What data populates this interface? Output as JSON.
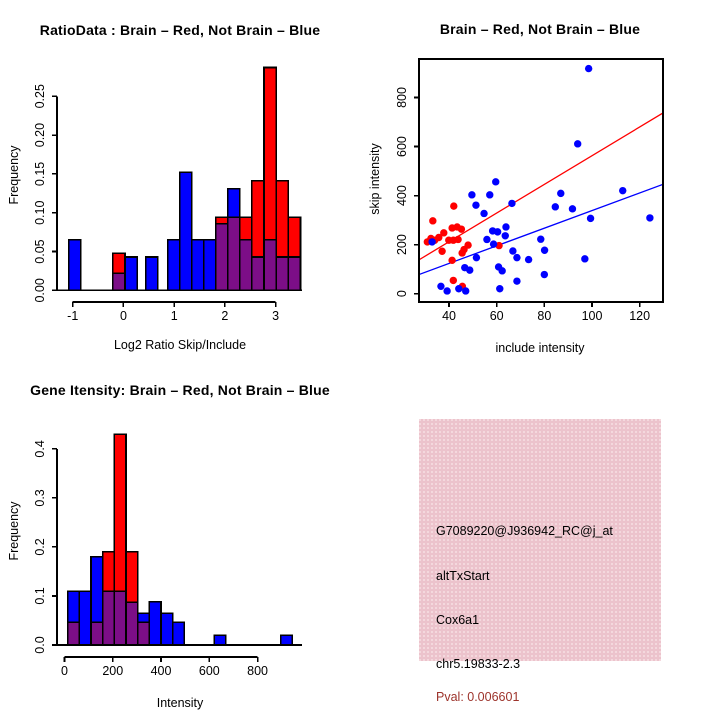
{
  "colors": {
    "red": "#ff0000",
    "blue": "#0000ff",
    "purple": "#7c0e87",
    "pink_box": "#ecc3cc",
    "pval_text": "#9d332b",
    "axis": "#000000",
    "background": "#ffffff"
  },
  "chart_data": [
    {
      "type": "bar",
      "subtype": "overlaid-histogram",
      "title": "RatioData : Brain – Red, Not Brain – Blue",
      "xlabel": "Log2 Ratio Skip/Include",
      "ylabel": "Frequency",
      "legend": {
        "Brain": "red",
        "Not Brain": "blue",
        "overlap": "purple"
      },
      "xlim": [
        -1.31,
        3.52
      ],
      "ylim": [
        -0.015,
        0.298
      ],
      "xticks": {
        "values": [
          -1,
          0,
          1,
          2,
          3
        ],
        "labels": [
          "-1",
          "0",
          "1",
          "2",
          "3"
        ]
      },
      "yticks": {
        "values": [
          0,
          0.05,
          0.1,
          0.15,
          0.2,
          0.25
        ],
        "labels": [
          "0.00",
          "0.05",
          "0.10",
          "0.15",
          "0.20",
          "0.25"
        ]
      },
      "bars": [
        {
          "x0": -1.08,
          "x1": -0.84,
          "h": 0.065,
          "color": "blue",
          "overlap": 0
        },
        {
          "x0": -0.21,
          "x1": 0.03,
          "h": 0.048,
          "color": "red",
          "overlap": 0.022
        },
        {
          "x0": 0.03,
          "x1": 0.27,
          "h": 0.043,
          "color": "blue",
          "overlap": 0
        },
        {
          "x0": 0.44,
          "x1": 0.68,
          "h": 0.043,
          "color": "blue",
          "overlap": 0
        },
        {
          "x0": 0.87,
          "x1": 1.11,
          "h": 0.065,
          "color": "blue",
          "overlap": 0
        },
        {
          "x0": 1.11,
          "x1": 1.35,
          "h": 0.152,
          "color": "blue",
          "overlap": 0
        },
        {
          "x0": 1.35,
          "x1": 1.58,
          "h": 0.065,
          "color": "blue",
          "overlap": 0
        },
        {
          "x0": 1.58,
          "x1": 1.82,
          "h": 0.065,
          "color": "blue",
          "overlap": 0
        },
        {
          "x0": 1.82,
          "x1": 2.06,
          "h": 0.094,
          "color": "red",
          "overlap": 0.086
        },
        {
          "x0": 2.06,
          "x1": 2.29,
          "h": 0.131,
          "color": "blue",
          "overlap": 0.094
        },
        {
          "x0": 2.29,
          "x1": 2.53,
          "h": 0.094,
          "color": "red",
          "overlap": 0.065
        },
        {
          "x0": 2.53,
          "x1": 2.77,
          "h": 0.141,
          "color": "red",
          "overlap": 0.043
        },
        {
          "x0": 2.77,
          "x1": 3.01,
          "h": 0.287,
          "color": "red",
          "overlap": 0.065
        },
        {
          "x0": 3.01,
          "x1": 3.25,
          "h": 0.141,
          "color": "red",
          "overlap": 0.043
        },
        {
          "x0": 3.25,
          "x1": 3.49,
          "h": 0.094,
          "color": "red",
          "overlap": 0.043
        }
      ]
    },
    {
      "type": "scatter",
      "title": "Brain – Red, Not Brain – Blue",
      "xlabel": "include intensity",
      "ylabel": "skip intensity",
      "xlim": [
        27.4,
        129.8
      ],
      "ylim": [
        -34,
        957
      ],
      "xticks": {
        "values": [
          40,
          60,
          80,
          100,
          120
        ],
        "labels": [
          "40",
          "60",
          "80",
          "100",
          "120"
        ]
      },
      "yticks": {
        "values": [
          0,
          200,
          400,
          600,
          800
        ],
        "labels": [
          "0",
          "200",
          "400",
          "600",
          "800"
        ]
      },
      "series": [
        {
          "name": "Brain",
          "color": "red",
          "points": [
            [
              42,
              357
            ],
            [
              33.2,
              297
            ],
            [
              30.9,
              211
            ],
            [
              32.4,
              225
            ],
            [
              34,
              218
            ],
            [
              35.7,
              229
            ],
            [
              37.8,
              248
            ],
            [
              39.9,
              218
            ],
            [
              41.3,
              268
            ],
            [
              43.4,
              272
            ],
            [
              45.2,
              263
            ],
            [
              41.8,
              218
            ],
            [
              43.8,
              221
            ],
            [
              37.1,
              173
            ],
            [
              41.3,
              136
            ],
            [
              45.5,
              166
            ],
            [
              46.3,
              180
            ],
            [
              48,
              198
            ],
            [
              41.8,
              54
            ],
            [
              45.6,
              30
            ],
            [
              61,
              196
            ]
          ]
        },
        {
          "name": "Not Brain",
          "color": "blue",
          "points": [
            [
              59.6,
              456
            ],
            [
              49.6,
              403
            ],
            [
              57.1,
              403
            ],
            [
              51.3,
              361
            ],
            [
              54.7,
              327
            ],
            [
              66.4,
              368
            ],
            [
              58.3,
              256
            ],
            [
              60.4,
              252
            ],
            [
              63.9,
              272
            ],
            [
              55.9,
              221
            ],
            [
              58.7,
              202
            ],
            [
              63.6,
              236
            ],
            [
              66.8,
              174
            ],
            [
              68.5,
              147
            ],
            [
              73.4,
              139
            ],
            [
              32.9,
              211
            ],
            [
              46.6,
              106
            ],
            [
              48.7,
              96
            ],
            [
              51.5,
              147
            ],
            [
              60.8,
              109
            ],
            [
              62.3,
              93
            ],
            [
              36.6,
              30
            ],
            [
              39.2,
              11
            ],
            [
              47,
              11
            ],
            [
              44.1,
              20
            ],
            [
              61.3,
              20
            ],
            [
              68.5,
              51
            ],
            [
              78.5,
              222
            ],
            [
              80.1,
              177
            ],
            [
              80,
              78
            ],
            [
              84.6,
              354
            ],
            [
              86.9,
              409
            ],
            [
              91.8,
              346
            ],
            [
              99.4,
              307
            ],
            [
              112.9,
              420
            ],
            [
              124.3,
              309
            ],
            [
              97,
              142
            ],
            [
              94,
              611
            ],
            [
              98.6,
              918
            ]
          ]
        }
      ],
      "fit_lines": [
        {
          "name": "Brain fit",
          "color": "red",
          "x0": 27.4,
          "y0": 138,
          "x1": 129.8,
          "y1": 737
        },
        {
          "name": "Not Brain fit",
          "color": "blue",
          "x0": 27.4,
          "y0": 78,
          "x1": 129.8,
          "y1": 446
        }
      ]
    },
    {
      "type": "bar",
      "subtype": "overlaid-histogram",
      "title": "Gene Itensity: Brain – Red, Not Brain – Blue",
      "xlabel": "Intensity",
      "ylabel": "Frequency",
      "legend": {
        "Brain": "red",
        "Not Brain": "blue",
        "overlap": "purple"
      },
      "xlim": [
        -31,
        984
      ],
      "ylim": [
        -0.0245,
        0.461
      ],
      "xticks": {
        "values": [
          0,
          200,
          400,
          600,
          800
        ],
        "labels": [
          "0",
          "200",
          "400",
          "600",
          "800"
        ]
      },
      "yticks": {
        "values": [
          0,
          0.1,
          0.2,
          0.3,
          0.4
        ],
        "labels": [
          "0.0",
          "0.1",
          "0.2",
          "0.3",
          "0.4"
        ]
      },
      "bars": [
        {
          "x0": 14,
          "x1": 62,
          "h": 0.11,
          "color": "blue",
          "overlap": 0.046
        },
        {
          "x0": 62,
          "x1": 110,
          "h": 0.11,
          "color": "blue",
          "overlap": 0
        },
        {
          "x0": 110,
          "x1": 159,
          "h": 0.18,
          "color": "blue",
          "overlap": 0.046
        },
        {
          "x0": 159,
          "x1": 207,
          "h": 0.19,
          "color": "red",
          "overlap": 0.11
        },
        {
          "x0": 207,
          "x1": 255,
          "h": 0.43,
          "color": "red",
          "overlap": 0.11
        },
        {
          "x0": 255,
          "x1": 304,
          "h": 0.19,
          "color": "red",
          "overlap": 0.087
        },
        {
          "x0": 304,
          "x1": 352,
          "h": 0.065,
          "color": "blue",
          "overlap": 0.046
        },
        {
          "x0": 352,
          "x1": 400,
          "h": 0.088,
          "color": "blue",
          "overlap": 0
        },
        {
          "x0": 400,
          "x1": 449,
          "h": 0.065,
          "color": "blue",
          "overlap": 0
        },
        {
          "x0": 449,
          "x1": 497,
          "h": 0.046,
          "color": "blue",
          "overlap": 0
        },
        {
          "x0": 620,
          "x1": 668,
          "h": 0.02,
          "color": "blue",
          "overlap": 0
        },
        {
          "x0": 896,
          "x1": 944,
          "h": 0.02,
          "color": "blue",
          "overlap": 0
        }
      ]
    },
    {
      "type": "table",
      "subtype": "info-box",
      "box_color": "#ecc3cc",
      "lines": [
        {
          "text": "G7089220@J936942_RC@j_at",
          "color": "#000000"
        },
        {
          "text": "altTxStart",
          "color": "#000000"
        },
        {
          "text": "Cox6a1",
          "color": "#000000"
        },
        {
          "text": "chr5.19833-2.3",
          "color": "#000000"
        },
        {
          "text": "Pval: 0.006601",
          "color": "#9d332b"
        }
      ]
    }
  ]
}
